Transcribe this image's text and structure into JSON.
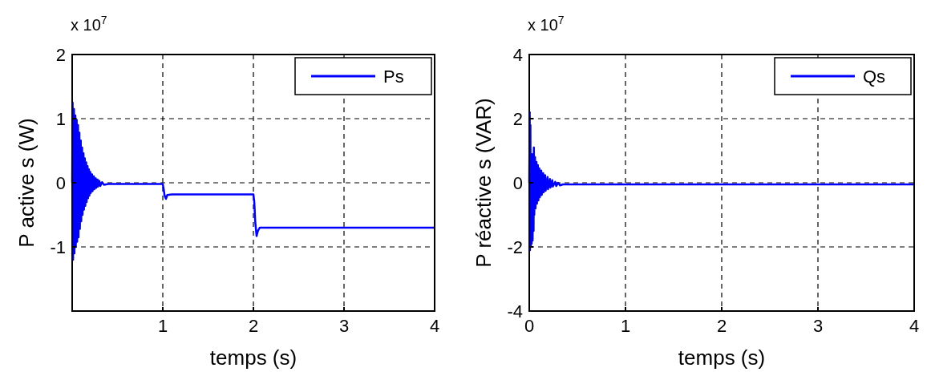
{
  "chart_data": [
    {
      "type": "line",
      "xlabel": "temps (s)",
      "ylabel": "P active s (W)",
      "annotations": [
        "x 10$^{7}$"
      ],
      "xlim": [
        0,
        4
      ],
      "ylim": [
        -2,
        2
      ],
      "xticks": [
        {
          "value": 0,
          "label": null
        },
        1,
        2,
        3,
        4
      ],
      "yticks": [
        {
          "value": -2,
          "label": null
        },
        -1,
        0,
        1,
        2
      ],
      "grid": true,
      "legend": "top right",
      "series": [
        {
          "name": "Ps",
          "color": "#0000ff",
          "x": [
            0,
            0.005,
            0.01,
            0.02,
            0.025,
            0.035,
            0.04,
            0.05,
            0.055,
            0.065,
            0.07,
            0.08,
            0.085,
            0.095,
            0.1,
            0.11,
            0.115,
            0.125,
            0.13,
            0.14,
            0.145,
            0.155,
            0.16,
            0.17,
            0.175,
            0.185,
            0.19,
            0.2,
            0.205,
            0.22,
            0.225,
            0.24,
            0.245,
            0.26,
            0.265,
            0.28,
            0.285,
            0.3,
            0.31,
            0.33,
            0.35,
            0.4,
            1.0,
            1.01,
            1.02,
            1.035,
            1.05,
            1.1,
            2.0,
            2.01,
            2.02,
            2.035,
            2.05,
            2.07,
            2.1,
            4
          ],
          "values": [
            0,
            1.25,
            -1.2,
            1.15,
            -1.1,
            1.05,
            -1.0,
            0.98,
            -0.92,
            0.9,
            -0.85,
            0.78,
            -0.72,
            0.66,
            -0.6,
            0.55,
            -0.5,
            0.46,
            -0.42,
            0.38,
            -0.36,
            0.32,
            -0.3,
            0.26,
            -0.24,
            0.21,
            -0.2,
            0.17,
            -0.16,
            0.13,
            -0.13,
            0.1,
            -0.1,
            0.07,
            -0.08,
            0.05,
            -0.06,
            0.03,
            -0.05,
            0.01,
            -0.03,
            -0.02,
            -0.02,
            -0.1,
            -0.2,
            -0.25,
            -0.19,
            -0.18,
            -0.18,
            -0.3,
            -0.6,
            -0.83,
            -0.75,
            -0.7,
            -0.7,
            -0.7
          ]
        }
      ]
    },
    {
      "type": "line",
      "xlabel": "temps (s)",
      "ylabel": "P réactive s (VAR)",
      "annotations": [
        "x 10$^{7}$"
      ],
      "xlim": [
        0,
        4
      ],
      "ylim": [
        -4,
        4
      ],
      "xticks": [
        0,
        1,
        2,
        3,
        4
      ],
      "yticks": [
        -4,
        -2,
        0,
        2,
        4
      ],
      "grid": true,
      "legend": "top right",
      "series": [
        {
          "name": "Qs",
          "color": "#0000ff",
          "x": [
            0,
            0.005,
            0.008,
            0.012,
            0.016,
            0.02,
            0.025,
            0.03,
            0.035,
            0.04,
            0.045,
            0.048,
            0.052,
            0.06,
            0.065,
            0.075,
            0.08,
            0.09,
            0.095,
            0.105,
            0.11,
            0.125,
            0.13,
            0.145,
            0.15,
            0.165,
            0.17,
            0.19,
            0.195,
            0.215,
            0.22,
            0.24,
            0.245,
            0.27,
            0.28,
            0.3,
            0.32,
            0.35,
            4
          ],
          "values": [
            0,
            2.2,
            -2.1,
            1.8,
            -2.0,
            0.9,
            -1.9,
            0.8,
            -1.8,
            0.9,
            -1.5,
            1.1,
            -1.0,
            0.8,
            -0.8,
            0.65,
            -0.65,
            0.55,
            -0.55,
            0.45,
            -0.45,
            0.38,
            -0.38,
            0.3,
            -0.3,
            0.24,
            -0.25,
            0.18,
            -0.2,
            0.12,
            -0.15,
            0.08,
            -0.12,
            0.03,
            -0.1,
            0.0,
            -0.08,
            -0.05,
            -0.05
          ]
        }
      ]
    }
  ]
}
